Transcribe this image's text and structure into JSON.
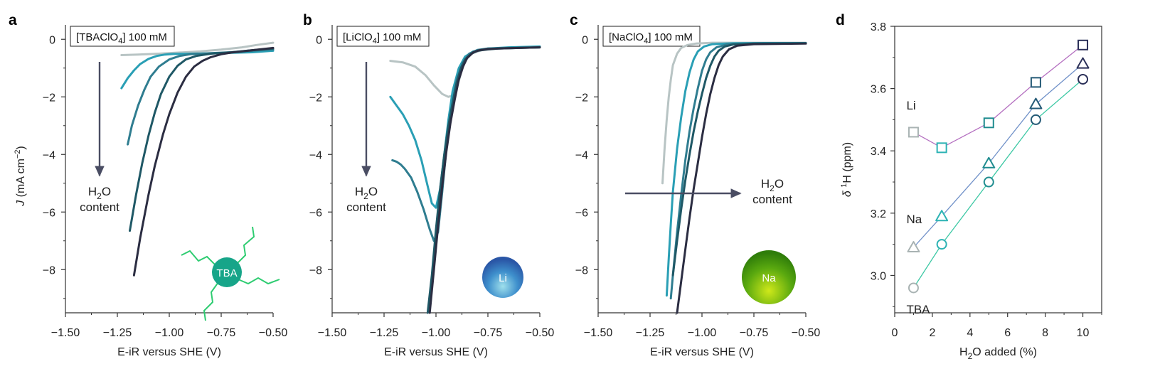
{
  "chart_data": [
    {
      "panel": "a",
      "type": "line",
      "label_box": {
        "pre": "[TBAClO",
        "sub": "4",
        "post": "] 100 mM"
      },
      "xlabel": "E-iR versus SHE (V)",
      "ylabel": {
        "pre": "J",
        "mid": " (mA cm",
        "sup": "−2",
        "post": ")"
      },
      "xlim": [
        -1.5,
        -0.5
      ],
      "ylim": [
        -9.5,
        0.5
      ],
      "xticks": [
        -1.5,
        -1.25,
        -1.0,
        -0.75,
        -0.5
      ],
      "xtick_labels": [
        "−1.50",
        "−1.25",
        "−1.00",
        "−0.75",
        "−0.50"
      ],
      "yticks": [
        0,
        -2,
        -4,
        -6,
        -8
      ],
      "ytick_labels": [
        "0",
        "−2",
        "−4",
        "−6",
        "−8"
      ],
      "annotation": {
        "line1_pre": "H",
        "line1_sub": "2",
        "line1_post": "O",
        "line2": "content"
      },
      "arrow": {
        "direction": "down"
      },
      "ion_label": "TBA",
      "ion_color": "#17a589",
      "series": [
        {
          "color": "#b8c4c4",
          "x": [
            -1.23,
            -1.15,
            -1.05,
            -0.95,
            -0.85,
            -0.75,
            -0.65,
            -0.58,
            -0.5
          ],
          "y": [
            -0.55,
            -0.53,
            -0.5,
            -0.46,
            -0.42,
            -0.36,
            -0.28,
            -0.2,
            -0.12
          ]
        },
        {
          "color": "#2a9fb5",
          "x": [
            -1.23,
            -1.2,
            -1.17,
            -1.14,
            -1.1,
            -1.06,
            -1.02,
            -0.98,
            -0.9,
            -0.8,
            -0.7,
            -0.6,
            -0.5
          ],
          "y": [
            -1.7,
            -1.35,
            -1.08,
            -0.86,
            -0.68,
            -0.58,
            -0.53,
            -0.51,
            -0.5,
            -0.49,
            -0.47,
            -0.45,
            -0.4
          ]
        },
        {
          "color": "#2f7d90",
          "x": [
            -1.2,
            -1.18,
            -1.15,
            -1.12,
            -1.09,
            -1.05,
            -1.0,
            -0.95,
            -0.9,
            -0.8,
            -0.7,
            -0.6,
            -0.5
          ],
          "y": [
            -3.65,
            -3.0,
            -2.3,
            -1.75,
            -1.3,
            -0.95,
            -0.7,
            -0.58,
            -0.52,
            -0.48,
            -0.45,
            -0.4,
            -0.35
          ]
        },
        {
          "color": "#1f5866",
          "x": [
            -1.19,
            -1.16,
            -1.13,
            -1.1,
            -1.07,
            -1.04,
            -1.0,
            -0.96,
            -0.92,
            -0.87,
            -0.8,
            -0.7,
            -0.6,
            -0.5
          ],
          "y": [
            -6.65,
            -5.4,
            -4.3,
            -3.35,
            -2.55,
            -1.9,
            -1.3,
            -0.92,
            -0.7,
            -0.58,
            -0.5,
            -0.45,
            -0.38,
            -0.32
          ]
        },
        {
          "color": "#2b2d42",
          "x": [
            -1.17,
            -1.14,
            -1.1,
            -1.07,
            -1.03,
            -1.0,
            -0.96,
            -0.92,
            -0.88,
            -0.84,
            -0.8,
            -0.75,
            -0.7,
            -0.6,
            -0.5
          ],
          "y": [
            -8.2,
            -6.9,
            -5.4,
            -4.4,
            -3.3,
            -2.6,
            -1.85,
            -1.3,
            -0.95,
            -0.75,
            -0.62,
            -0.52,
            -0.46,
            -0.38,
            -0.3
          ]
        }
      ]
    },
    {
      "panel": "b",
      "type": "line",
      "label_box": {
        "pre": "[LiClO",
        "sub": "4",
        "post": "] 100 mM"
      },
      "xlabel": "E-iR versus SHE (V)",
      "xlim": [
        -1.5,
        -0.5
      ],
      "ylim": [
        -9.5,
        0.5
      ],
      "xticks": [
        -1.5,
        -1.25,
        -1.0,
        -0.75,
        -0.5
      ],
      "xtick_labels": [
        "−1.50",
        "−1.25",
        "−1.00",
        "−0.75",
        "−0.50"
      ],
      "yticks": [
        0,
        -2,
        -4,
        -6,
        -8
      ],
      "ytick_labels": [
        "0",
        "−2",
        "−4",
        "−6",
        "−8"
      ],
      "annotation": {
        "line1_pre": "H",
        "line1_sub": "2",
        "line1_post": "O",
        "line2": "content"
      },
      "arrow": {
        "direction": "down"
      },
      "ion_label": "Li",
      "ion_color": "#2f6fb8",
      "series": [
        {
          "color": "#b8c4c4",
          "x": [
            -1.22,
            -1.16,
            -1.1,
            -1.05,
            -1.01,
            -0.97,
            -0.94,
            -0.92,
            -0.9,
            -0.88,
            -0.86,
            -0.83,
            -0.78,
            -0.7,
            -0.6,
            -0.5
          ],
          "y": [
            -0.75,
            -0.8,
            -0.95,
            -1.25,
            -1.6,
            -1.9,
            -2.0,
            -1.95,
            -1.7,
            -1.2,
            -0.75,
            -0.5,
            -0.38,
            -0.32,
            -0.3,
            -0.28
          ]
        },
        {
          "color": "#2a9fb5",
          "x": [
            -1.22,
            -1.19,
            -1.16,
            -1.13,
            -1.1,
            -1.07,
            -1.04,
            -1.02,
            -1.0,
            -0.98,
            -0.96,
            -0.94,
            -0.92,
            -0.89,
            -0.86,
            -0.82,
            -0.75,
            -0.65,
            -0.5
          ],
          "y": [
            -2.0,
            -2.3,
            -2.6,
            -3.0,
            -3.5,
            -4.2,
            -5.1,
            -5.7,
            -5.85,
            -5.2,
            -4.0,
            -2.8,
            -1.8,
            -1.0,
            -0.6,
            -0.42,
            -0.32,
            -0.28,
            -0.25
          ]
        },
        {
          "color": "#2f7d90",
          "x": [
            -1.21,
            -1.19,
            -1.17,
            -1.15,
            -1.12,
            -1.09,
            -1.06,
            -1.03,
            -1.01,
            -0.99,
            -0.97,
            -0.95,
            -0.93,
            -0.9,
            -0.87,
            -0.84,
            -0.8,
            -0.75,
            -0.65,
            -0.5
          ],
          "y": [
            -4.2,
            -4.25,
            -4.35,
            -4.5,
            -4.8,
            -5.3,
            -5.9,
            -6.6,
            -7.0,
            -6.7,
            -5.3,
            -3.8,
            -2.6,
            -1.4,
            -0.8,
            -0.5,
            -0.37,
            -0.32,
            -0.3,
            -0.28
          ]
        },
        {
          "color": "#1f5866",
          "x": [
            -1.04,
            -1.02,
            -1.0,
            -0.98,
            -0.96,
            -0.94,
            -0.92,
            -0.9,
            -0.88,
            -0.86,
            -0.83,
            -0.8,
            -0.75,
            -0.7,
            -0.6,
            -0.5
          ],
          "y": [
            -9.5,
            -8.2,
            -6.6,
            -5.2,
            -4.0,
            -3.0,
            -2.2,
            -1.5,
            -1.0,
            -0.7,
            -0.5,
            -0.4,
            -0.35,
            -0.32,
            -0.3,
            -0.28
          ]
        },
        {
          "color": "#2b2d42",
          "x": [
            -1.03,
            -1.01,
            -0.99,
            -0.97,
            -0.95,
            -0.93,
            -0.91,
            -0.89,
            -0.87,
            -0.85,
            -0.82,
            -0.79,
            -0.75,
            -0.7,
            -0.6,
            -0.5
          ],
          "y": [
            -9.5,
            -8.0,
            -6.5,
            -5.1,
            -3.9,
            -2.9,
            -2.1,
            -1.4,
            -0.95,
            -0.65,
            -0.45,
            -0.38,
            -0.34,
            -0.32,
            -0.3,
            -0.28
          ]
        }
      ]
    },
    {
      "panel": "c",
      "type": "line",
      "label_box": {
        "pre": "[NaClO",
        "sub": "4",
        "post": "] 100 mM"
      },
      "xlabel": "E-iR versus SHE (V)",
      "xlim": [
        -1.5,
        -0.5
      ],
      "ylim": [
        -9.5,
        0.5
      ],
      "xticks": [
        -1.5,
        -1.25,
        -1.0,
        -0.75,
        -0.5
      ],
      "xtick_labels": [
        "−1.50",
        "−1.25",
        "−1.00",
        "−0.75",
        "−0.50"
      ],
      "yticks": [
        0,
        -2,
        -4,
        -6,
        -8
      ],
      "ytick_labels": [
        "0",
        "−2",
        "−4",
        "−6",
        "−8"
      ],
      "annotation": {
        "line1_pre": "H",
        "line1_sub": "2",
        "line1_post": "O",
        "line2": "content"
      },
      "arrow": {
        "direction": "right"
      },
      "ion_label": "Na",
      "ion_color": "#4fa30f",
      "series": [
        {
          "color": "#b8c4c4",
          "x": [
            -1.19,
            -1.18,
            -1.17,
            -1.16,
            -1.15,
            -1.14,
            -1.12,
            -1.1,
            -1.07,
            -1.03,
            -0.95,
            -0.85,
            -0.7,
            -0.5
          ],
          "y": [
            -5.0,
            -3.8,
            -2.8,
            -2.0,
            -1.4,
            -0.9,
            -0.5,
            -0.3,
            -0.2,
            -0.15,
            -0.12,
            -0.12,
            -0.12,
            -0.12
          ]
        },
        {
          "color": "#2a9fb5",
          "x": [
            -1.17,
            -1.16,
            -1.15,
            -1.14,
            -1.12,
            -1.1,
            -1.08,
            -1.06,
            -1.04,
            -1.02,
            -0.99,
            -0.95,
            -0.85,
            -0.7,
            -0.5
          ],
          "y": [
            -8.9,
            -7.6,
            -6.4,
            -5.3,
            -3.8,
            -2.7,
            -1.8,
            -1.15,
            -0.7,
            -0.42,
            -0.25,
            -0.17,
            -0.14,
            -0.13,
            -0.13
          ]
        },
        {
          "color": "#2f7d90",
          "x": [
            -1.15,
            -1.14,
            -1.12,
            -1.1,
            -1.08,
            -1.06,
            -1.04,
            -1.02,
            -1.0,
            -0.98,
            -0.96,
            -0.93,
            -0.88,
            -0.75,
            -0.5
          ],
          "y": [
            -9.0,
            -8.2,
            -6.7,
            -5.4,
            -4.2,
            -3.2,
            -2.4,
            -1.7,
            -1.1,
            -0.7,
            -0.45,
            -0.28,
            -0.18,
            -0.15,
            -0.14
          ]
        },
        {
          "color": "#1f5866",
          "x": [
            -1.14,
            -1.12,
            -1.1,
            -1.08,
            -1.06,
            -1.04,
            -1.02,
            -1.0,
            -0.98,
            -0.96,
            -0.94,
            -0.92,
            -0.89,
            -0.85,
            -0.75,
            -0.5
          ],
          "y": [
            -8.2,
            -7.0,
            -5.9,
            -4.9,
            -4.0,
            -3.2,
            -2.5,
            -1.9,
            -1.35,
            -0.92,
            -0.6,
            -0.4,
            -0.25,
            -0.18,
            -0.15,
            -0.14
          ]
        },
        {
          "color": "#2b2d42",
          "x": [
            -1.12,
            -1.1,
            -1.08,
            -1.06,
            -1.04,
            -1.02,
            -1.0,
            -0.98,
            -0.96,
            -0.94,
            -0.92,
            -0.9,
            -0.87,
            -0.83,
            -0.75,
            -0.5
          ],
          "y": [
            -9.5,
            -8.4,
            -7.3,
            -6.2,
            -5.2,
            -4.3,
            -3.4,
            -2.6,
            -1.9,
            -1.35,
            -0.9,
            -0.6,
            -0.35,
            -0.22,
            -0.17,
            -0.15
          ]
        }
      ]
    },
    {
      "panel": "d",
      "type": "scatter",
      "xlabel": {
        "pre": "H",
        "sub": "2",
        "post": "O added (%)"
      },
      "ylabel": {
        "pre": "δ ",
        "sup": "1",
        "post": "H (ppm)"
      },
      "xlim": [
        0,
        11
      ],
      "ylim": [
        2.88,
        3.8
      ],
      "xticks": [
        0,
        2,
        4,
        6,
        8,
        10
      ],
      "xtick_labels": [
        "0",
        "2",
        "4",
        "6",
        "8",
        "10"
      ],
      "yticks": [
        3.0,
        3.2,
        3.4,
        3.6,
        3.8
      ],
      "ytick_labels": [
        "3.0",
        "3.2",
        "3.4",
        "3.6",
        "3.8"
      ],
      "series": [
        {
          "name": "Li",
          "marker": "square",
          "line_color": "#b46fc0",
          "marker_colors": [
            "#a9b3b3",
            "#2cb3b4",
            "#1f8c8f",
            "#245a76",
            "#2a2f58"
          ],
          "x": [
            1,
            2.5,
            5,
            7.5,
            10
          ],
          "y": [
            3.46,
            3.41,
            3.49,
            3.62,
            3.74
          ]
        },
        {
          "name": "Na",
          "marker": "triangle",
          "line_color": "#6f90c8",
          "marker_colors": [
            "#a9b3b3",
            "#2cb3b4",
            "#1f8c8f",
            "#245a76",
            "#2a2f58"
          ],
          "x": [
            1,
            2.5,
            5,
            7.5,
            10
          ],
          "y": [
            3.09,
            3.19,
            3.36,
            3.55,
            3.68
          ]
        },
        {
          "name": "TBA",
          "marker": "circle",
          "line_color": "#3cc8a4",
          "marker_colors": [
            "#a9b3b3",
            "#2cb3b4",
            "#1f8c8f",
            "#245a76",
            "#2a2f58"
          ],
          "x": [
            1,
            2.5,
            5,
            7.5,
            10
          ],
          "y": [
            2.96,
            3.1,
            3.3,
            3.5,
            3.63
          ]
        }
      ]
    }
  ]
}
